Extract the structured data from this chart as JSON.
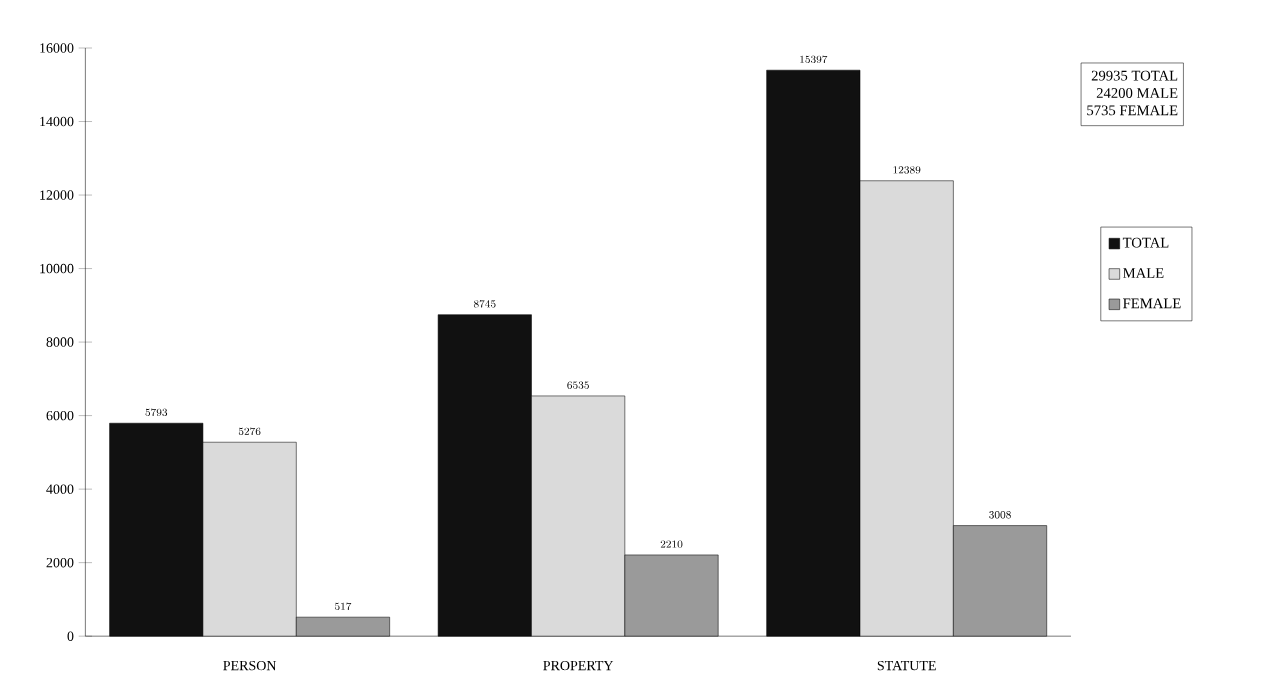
{
  "chart_data": {
    "type": "bar",
    "categories": [
      "PERSON",
      "PROPERTY",
      "STATUTE"
    ],
    "series": [
      {
        "name": "TOTAL",
        "color": "#111111",
        "values": [
          5793,
          8745,
          15397
        ]
      },
      {
        "name": "MALE",
        "color": "#dadada",
        "values": [
          5276,
          6535,
          12389
        ]
      },
      {
        "name": "FEMALE",
        "color": "#9a9a9a",
        "values": [
          517,
          2210,
          3008
        ]
      }
    ],
    "ylim": [
      0,
      16000
    ],
    "yticks": [
      0,
      2000,
      4000,
      6000,
      8000,
      10000,
      12000,
      14000,
      16000
    ],
    "data_labels": true,
    "legend": "right",
    "grid": false,
    "annotations": [
      "29935 TOTAL",
      "24200 MALE",
      "5735 FEMALE"
    ]
  }
}
